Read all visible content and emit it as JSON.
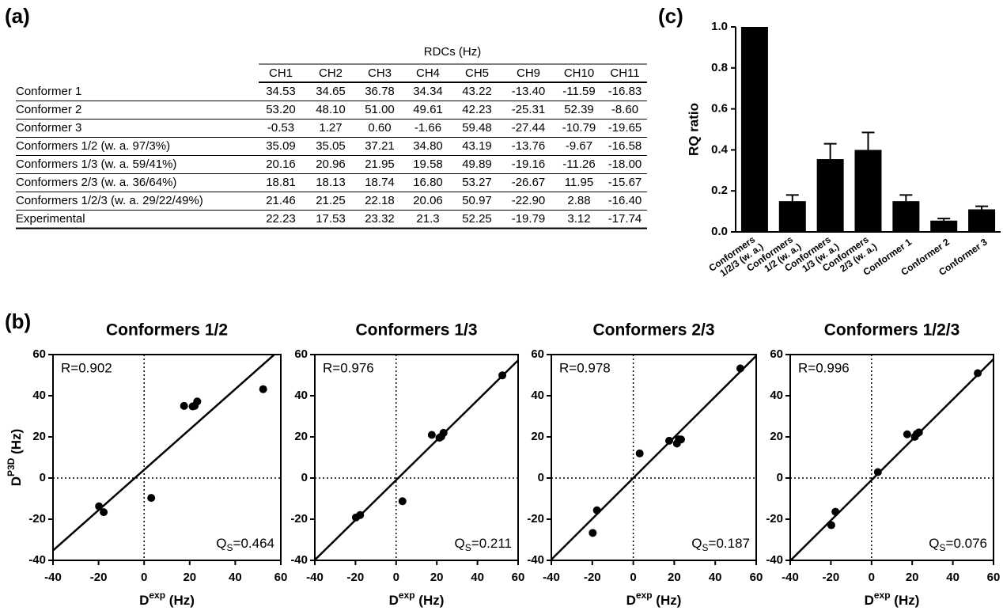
{
  "labels": {
    "a": "(a)",
    "b": "(b)",
    "c": "(c)"
  },
  "table": {
    "caption": "RDCs (Hz)",
    "columns": [
      "CH1",
      "CH2",
      "CH3",
      "CH4",
      "CH5",
      "CH9",
      "CH10",
      "CH11"
    ],
    "rows": [
      {
        "name": "Conformer 1",
        "values": [
          "34.53",
          "34.65",
          "36.78",
          "34.34",
          "43.22",
          "-13.40",
          "-11.59",
          "-16.83"
        ]
      },
      {
        "name": "Conformer 2",
        "values": [
          "53.20",
          "48.10",
          "51.00",
          "49.61",
          "42.23",
          "-25.31",
          "52.39",
          "-8.60"
        ]
      },
      {
        "name": "Conformer 3",
        "values": [
          "-0.53",
          "1.27",
          "0.60",
          "-1.66",
          "59.48",
          "-27.44",
          "-10.79",
          "-19.65"
        ]
      },
      {
        "name": "Conformers 1/2 (w. a. 97/3%)",
        "values": [
          "35.09",
          "35.05",
          "37.21",
          "34.80",
          "43.19",
          "-13.76",
          "-9.67",
          "-16.58"
        ]
      },
      {
        "name": "Conformers 1/3 (w. a. 59/41%)",
        "values": [
          "20.16",
          "20.96",
          "21.95",
          "19.58",
          "49.89",
          "-19.16",
          "-11.26",
          "-18.00"
        ]
      },
      {
        "name": "Conformers 2/3 (w. a. 36/64%)",
        "values": [
          "18.81",
          "18.13",
          "18.74",
          "16.80",
          "53.27",
          "-26.67",
          "11.95",
          "-15.67"
        ]
      },
      {
        "name": "Conformers 1/2/3 (w. a. 29/22/49%)",
        "values": [
          "21.46",
          "21.25",
          "22.18",
          "20.06",
          "50.97",
          "-22.90",
          "2.88",
          "-16.40"
        ]
      },
      {
        "name": "Experimental",
        "values": [
          "22.23",
          "17.53",
          "23.32",
          "21.3",
          "52.25",
          "-19.79",
          "3.12",
          "-17.74"
        ]
      }
    ]
  },
  "chart_data": [
    {
      "type": "bar",
      "ylabel": "RQ ratio",
      "color": "#000000",
      "categories": [
        "Conformers 1/2/3 (w. a.)",
        "Conformers 1/2 (w. a.)",
        "Conformers 1/3 (w. a.)",
        "Conformers 2/3 (w. a.)",
        "Conformer 1",
        "Conformer 2",
        "Conformer 3"
      ],
      "values": [
        1.0,
        0.15,
        0.355,
        0.4,
        0.15,
        0.055,
        0.11
      ],
      "errors": [
        null,
        0.03,
        0.075,
        0.085,
        0.03,
        0.01,
        0.015
      ],
      "ylim": [
        0,
        1
      ],
      "yticks": [
        {
          "value": 0,
          "label": "0.0"
        },
        0.2,
        0.4,
        0.6,
        0.8,
        {
          "value": 1,
          "label": "1.0"
        }
      ]
    },
    {
      "type": "scatter",
      "title": "Conformers 1/2",
      "ylabel": {
        "base": "D",
        "sup": "P3D",
        "unit": "(Hz)"
      },
      "xlabel": {
        "base": "D",
        "sup": "exp",
        "unit": "(Hz)"
      },
      "r_annotation": "R=0.902",
      "q_annotation": {
        "symbol": "Q",
        "sub": "S",
        "value": "=0.464"
      },
      "x": [
        22.23,
        17.53,
        23.32,
        21.3,
        52.25,
        -19.79,
        3.12,
        -17.74
      ],
      "y": [
        35.09,
        35.05,
        37.21,
        34.8,
        43.19,
        -13.76,
        -9.67,
        -16.58
      ],
      "fit": {
        "slope": 0.98,
        "intercept": 4
      },
      "xlim": [
        -40,
        60
      ],
      "ylim": [
        -40,
        60
      ],
      "xticks": [
        -40,
        -20,
        0,
        20,
        40,
        60
      ],
      "yticks": [
        -40,
        -20,
        0,
        20,
        40,
        60
      ],
      "zero_lines": true
    },
    {
      "type": "scatter",
      "title": "Conformers 1/3",
      "xlabel": {
        "base": "D",
        "sup": "exp",
        "unit": "(Hz)"
      },
      "r_annotation": "R=0.976",
      "q_annotation": {
        "symbol": "Q",
        "sub": "S",
        "value": "=0.211"
      },
      "x": [
        22.23,
        17.53,
        23.32,
        21.3,
        52.25,
        -19.79,
        3.12,
        -17.74
      ],
      "y": [
        20.16,
        20.96,
        21.95,
        19.58,
        49.89,
        -19.16,
        -11.26,
        -18.0
      ],
      "fit": {
        "slope": 0.97,
        "intercept": -1
      },
      "xlim": [
        -40,
        60
      ],
      "ylim": [
        -40,
        60
      ],
      "xticks": [
        -40,
        -20,
        0,
        20,
        40,
        60
      ],
      "yticks": [
        -40,
        -20,
        0,
        20,
        40,
        60
      ],
      "zero_lines": true
    },
    {
      "type": "scatter",
      "title": "Conformers 2/3",
      "xlabel": {
        "base": "D",
        "sup": "exp",
        "unit": "(Hz)"
      },
      "r_annotation": "R=0.978",
      "q_annotation": {
        "symbol": "Q",
        "sub": "S",
        "value": "=0.187"
      },
      "x": [
        22.23,
        17.53,
        23.32,
        21.3,
        52.25,
        -19.79,
        3.12,
        -17.74
      ],
      "y": [
        18.81,
        18.13,
        18.74,
        16.8,
        53.27,
        -26.67,
        11.95,
        -15.67
      ],
      "fit": {
        "slope": 0.99,
        "intercept": 0
      },
      "xlim": [
        -40,
        60
      ],
      "ylim": [
        -40,
        60
      ],
      "xticks": [
        -40,
        -20,
        0,
        20,
        40,
        60
      ],
      "yticks": [
        -40,
        -20,
        0,
        20,
        40,
        60
      ],
      "zero_lines": true
    },
    {
      "type": "scatter",
      "title": "Conformers 1/2/3",
      "xlabel": {
        "base": "D",
        "sup": "exp",
        "unit": "(Hz)"
      },
      "r_annotation": "R=0.996",
      "q_annotation": {
        "symbol": "Q",
        "sub": "S",
        "value": "=0.076"
      },
      "x": [
        22.23,
        17.53,
        23.32,
        21.3,
        52.25,
        -19.79,
        3.12,
        -17.74
      ],
      "y": [
        21.46,
        21.25,
        22.18,
        20.06,
        50.97,
        -22.9,
        2.88,
        -16.4
      ],
      "fit": {
        "slope": 0.98,
        "intercept": -1
      },
      "xlim": [
        -40,
        60
      ],
      "ylim": [
        -40,
        60
      ],
      "xticks": [
        -40,
        -20,
        0,
        20,
        40,
        60
      ],
      "yticks": [
        -40,
        -20,
        0,
        20,
        40,
        60
      ],
      "zero_lines": true
    }
  ]
}
